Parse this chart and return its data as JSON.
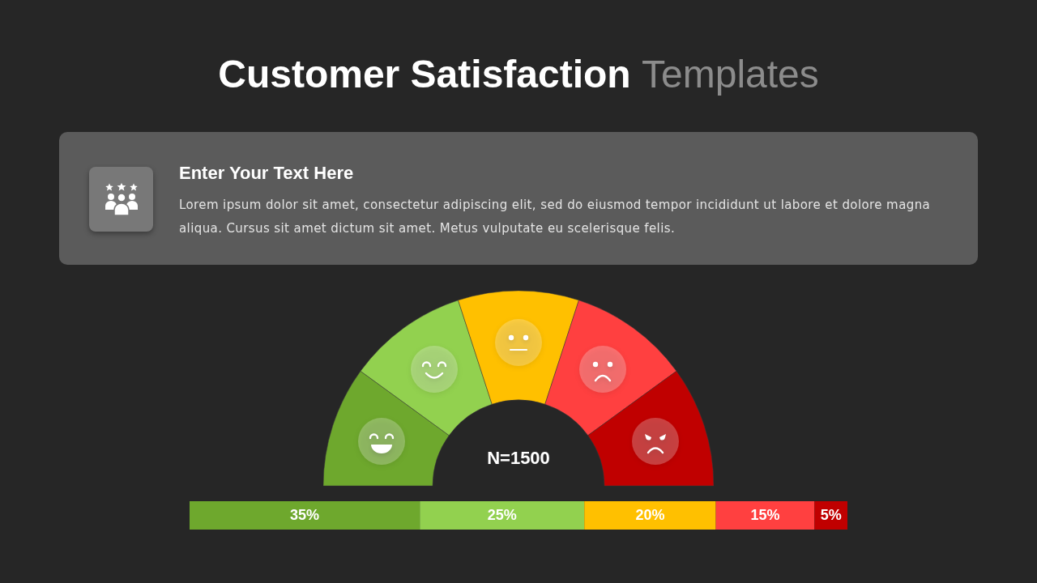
{
  "chart_data": [
    {
      "type": "other",
      "title": "Customer Satisfaction Templates",
      "subtitle": "Enter Your Text Here",
      "annotations": [
        "Lorem ipsum dolor sit amet, consectetur adipiscing elit, sed do eiusmod tempor incididunt ut labore et dolore magna aliqua. Cursus sit amet dictum sit amet. Metus vulputate eu scelerisque felis."
      ]
    },
    {
      "type": "donut",
      "categories": [
        null,
        null,
        null,
        null,
        null
      ],
      "values": [
        20,
        20,
        20,
        20,
        20
      ],
      "colors": [
        "#6ea82d",
        "#92d14f",
        "#ffc000",
        "#ff4040",
        "#c00000"
      ],
      "annotations": [
        "N=1500"
      ]
    },
    {
      "type": "bar",
      "orientation": "horizontal",
      "stacked": true,
      "categories": [
        null
      ],
      "series": [
        {
          "color": "#6ea82d",
          "values": [
            35
          ],
          "value_labels": [
            "35%"
          ]
        },
        {
          "color": "#92d14f",
          "values": [
            25
          ],
          "value_labels": [
            "25%"
          ]
        },
        {
          "color": "#ffc000",
          "values": [
            20
          ],
          "value_labels": [
            "20%"
          ]
        },
        {
          "color": "#ff4040",
          "values": [
            15
          ],
          "value_labels": [
            "15%"
          ]
        },
        {
          "color": "#c00000",
          "values": [
            5
          ],
          "value_labels": [
            "5%"
          ]
        }
      ],
      "xlim": [
        0,
        100
      ],
      "tick_labels": false
    }
  ]
}
